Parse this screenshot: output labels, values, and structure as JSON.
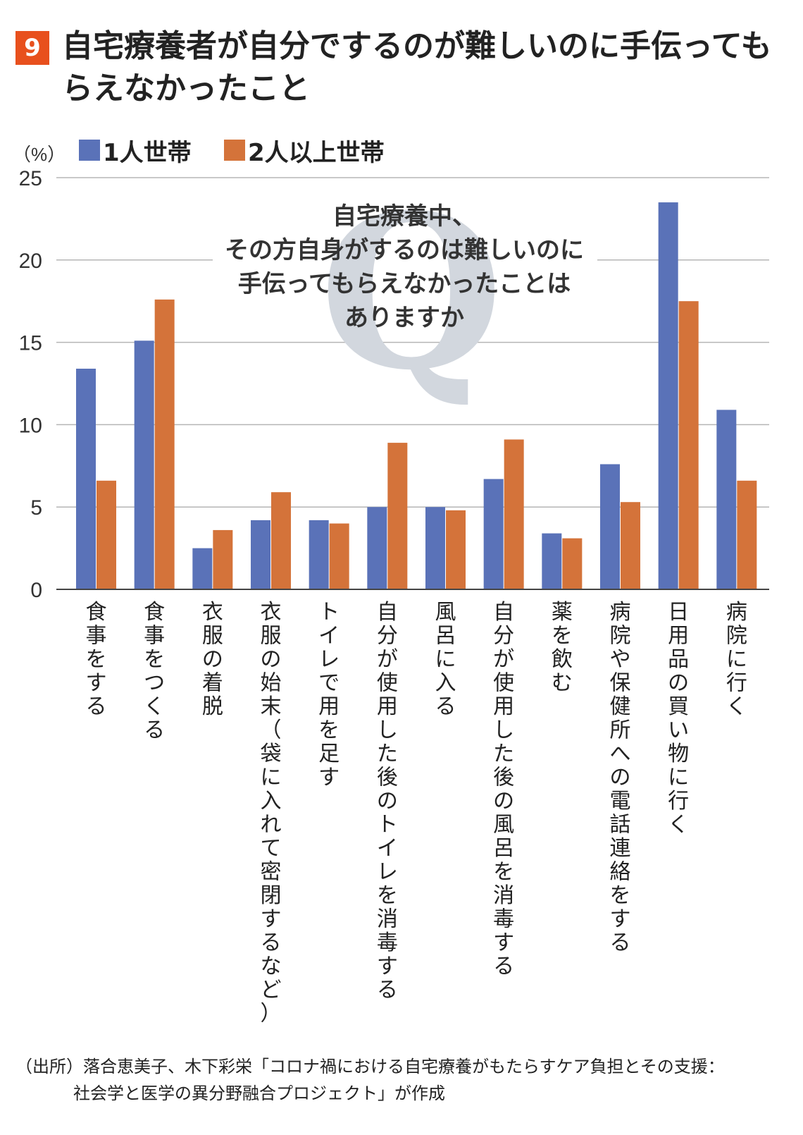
{
  "title": {
    "number": "9",
    "text": "自宅療養者が自分でするのが難しいのに手伝ってもらえなかったこと"
  },
  "question": {
    "lines": [
      "自宅療養中、",
      "その方自身がするのは難しいのに",
      "手伝ってもらえなかったことは",
      "ありますか"
    ]
  },
  "source": {
    "line1": "（出所）落合恵美子、木下彩栄「コロナ禍における自宅療養がもたらすケア負担とその支援：",
    "line2": "社会学と医学の異分野融合プロジェクト」が作成"
  },
  "chart_data": {
    "type": "bar",
    "ylabel": "（%）",
    "ylim": [
      0,
      25
    ],
    "yticks": [
      0,
      5,
      10,
      15,
      20,
      25
    ],
    "grid": true,
    "legend_position": "top-left",
    "categories": [
      "食事をする",
      "食事をつくる",
      "衣服の着脱",
      "衣服の始末（袋に入れて密閉するなど）",
      "トイレで用を足す",
      "自分が使用した後のトイレを消毒する",
      "風呂に入る",
      "自分が使用した後の風呂を消毒する",
      "薬を飲む",
      "病院や保健所への電話連絡をする",
      "日用品の買い物に行く",
      "病院に行く"
    ],
    "series": [
      {
        "name": "1人世帯",
        "color": "#5a72b8",
        "values": [
          13.4,
          15.1,
          2.5,
          4.2,
          4.2,
          5.0,
          5.0,
          6.7,
          3.4,
          7.6,
          23.5,
          10.9
        ]
      },
      {
        "name": "2人以上世帯",
        "color": "#d4733a",
        "values": [
          6.6,
          17.6,
          3.6,
          5.9,
          4.0,
          8.9,
          4.8,
          9.1,
          3.1,
          5.3,
          17.5,
          6.6
        ]
      }
    ]
  }
}
